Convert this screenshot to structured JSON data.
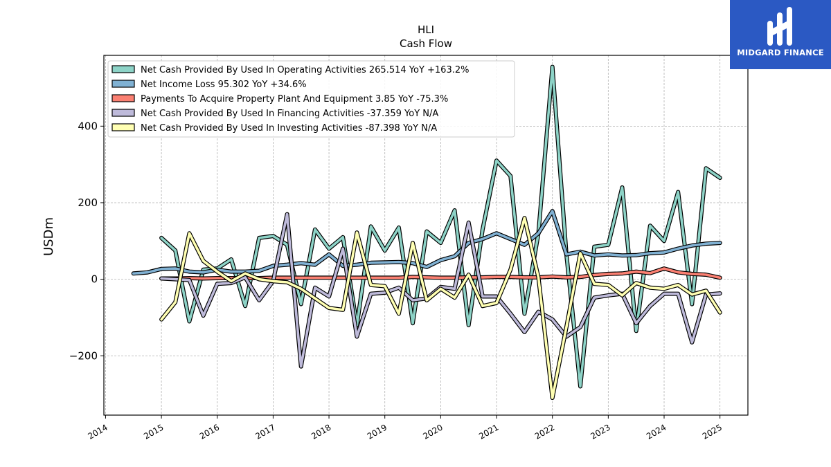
{
  "brand": {
    "name": "MIDGARD FINANCE",
    "background": "#2b59c3",
    "logo_icon": "midgard-mark-icon"
  },
  "chart_data": {
    "type": "line",
    "title": "HLI",
    "subtitle": "Cash Flow",
    "xlabel": "",
    "ylabel": "USDm",
    "xlim": [
      2013.97,
      2025.5
    ],
    "ylim": [
      -355,
      585
    ],
    "x_ticks": [
      "2014",
      "2015",
      "2016",
      "2017",
      "2018",
      "2019",
      "2020",
      "2021",
      "2022",
      "2023",
      "2024",
      "2025"
    ],
    "y_ticks": [
      -200,
      0,
      200,
      400
    ],
    "grid": true,
    "legend_position": "top-left",
    "series": [
      {
        "name": "Net Cash Provided By Used In Operating Activities  265.514 YoY +163.2%",
        "color": "#8dd3c7",
        "x": [
          2015.0,
          2015.25,
          2015.5,
          2015.75,
          2016.0,
          2016.25,
          2016.5,
          2016.75,
          2017.0,
          2017.25,
          2017.5,
          2017.75,
          2018.0,
          2018.25,
          2018.5,
          2018.75,
          2019.0,
          2019.25,
          2019.5,
          2019.75,
          2020.0,
          2020.25,
          2020.5,
          2020.75,
          2021.0,
          2021.25,
          2021.5,
          2021.75,
          2022.0,
          2022.25,
          2022.5,
          2022.75,
          2023.0,
          2023.25,
          2023.5,
          2023.75,
          2024.0,
          2024.25,
          2024.5,
          2024.75,
          2025.0
        ],
        "values": [
          108,
          75,
          -110,
          25,
          28,
          52,
          -70,
          108,
          113,
          90,
          -65,
          130,
          80,
          110,
          -120,
          138,
          75,
          135,
          -115,
          125,
          95,
          180,
          -120,
          130,
          310,
          270,
          -90,
          120,
          555,
          65,
          -280,
          85,
          90,
          240,
          -135,
          140,
          100,
          228,
          -65,
          290,
          265
        ]
      },
      {
        "name": "Net Income Loss  95.302 YoY +34.6%",
        "color": "#80b1d3",
        "x": [
          2014.5,
          2014.75,
          2015.0,
          2015.25,
          2015.5,
          2015.75,
          2016.0,
          2016.25,
          2016.5,
          2016.75,
          2017.0,
          2017.25,
          2017.5,
          2017.75,
          2018.0,
          2018.25,
          2018.5,
          2018.75,
          2019.0,
          2019.25,
          2019.5,
          2019.75,
          2020.0,
          2020.25,
          2020.5,
          2020.75,
          2021.0,
          2021.25,
          2021.5,
          2021.75,
          2022.0,
          2022.25,
          2022.5,
          2022.75,
          2023.0,
          2023.25,
          2023.5,
          2023.75,
          2024.0,
          2024.25,
          2024.5,
          2024.75,
          2025.0
        ],
        "values": [
          15,
          18,
          27,
          28,
          20,
          18,
          25,
          20,
          20,
          22,
          35,
          38,
          42,
          38,
          65,
          35,
          38,
          43,
          44,
          45,
          42,
          32,
          50,
          60,
          95,
          105,
          120,
          105,
          90,
          120,
          178,
          65,
          72,
          62,
          65,
          62,
          63,
          68,
          70,
          80,
          88,
          93,
          95
        ]
      },
      {
        "name": "Payments To Acquire Property Plant And Equipment  3.85 YoY -75.3%",
        "color": "#fb8072",
        "x": [
          2015.0,
          2015.25,
          2015.5,
          2015.75,
          2016.0,
          2016.25,
          2016.5,
          2016.75,
          2017.0,
          2017.25,
          2017.5,
          2017.75,
          2018.0,
          2018.25,
          2018.5,
          2018.75,
          2019.0,
          2019.25,
          2019.5,
          2019.75,
          2020.0,
          2020.25,
          2020.5,
          2020.75,
          2021.0,
          2021.25,
          2021.5,
          2021.75,
          2022.0,
          2022.25,
          2022.5,
          2022.75,
          2023.0,
          2023.25,
          2023.5,
          2023.75,
          2024.0,
          2024.25,
          2024.5,
          2024.75,
          2025.0
        ],
        "values": [
          2,
          2,
          3,
          2,
          3,
          3,
          3,
          3,
          4,
          4,
          4,
          4,
          4,
          4,
          4,
          4,
          4,
          4,
          6,
          5,
          4,
          4,
          5,
          5,
          6,
          6,
          5,
          5,
          7,
          5,
          6,
          11,
          14,
          15,
          20,
          16,
          28,
          18,
          14,
          12,
          4
        ]
      },
      {
        "name": "Net Cash Provided By Used In Financing Activities  -37.359 YoY N/A",
        "color": "#bebada",
        "x": [
          2015.0,
          2015.25,
          2015.5,
          2015.75,
          2016.0,
          2016.25,
          2016.5,
          2016.75,
          2017.0,
          2017.25,
          2017.5,
          2017.75,
          2018.0,
          2018.25,
          2018.5,
          2018.75,
          2019.0,
          2019.25,
          2019.5,
          2019.75,
          2020.0,
          2020.25,
          2020.5,
          2020.75,
          2021.0,
          2021.25,
          2021.5,
          2021.75,
          2022.0,
          2022.25,
          2022.5,
          2022.75,
          2023.0,
          2023.25,
          2023.5,
          2023.75,
          2024.0,
          2024.25,
          2024.5,
          2024.75,
          2025.0
        ],
        "values": [
          2,
          0,
          -2,
          -95,
          -12,
          -10,
          5,
          -55,
          -5,
          170,
          -228,
          -22,
          -45,
          80,
          -150,
          -38,
          -35,
          -22,
          -55,
          -50,
          -20,
          -25,
          148,
          -45,
          -45,
          -90,
          -138,
          -85,
          -105,
          -150,
          -125,
          -48,
          -42,
          -38,
          -115,
          -70,
          -38,
          -38,
          -165,
          -40,
          -37
        ]
      },
      {
        "name": "Net Cash Provided By Used In Investing Activities  -87.398 YoY N/A",
        "color": "#ffffb3",
        "x": [
          2015.0,
          2015.25,
          2015.5,
          2015.75,
          2016.0,
          2016.25,
          2016.5,
          2016.75,
          2017.0,
          2017.25,
          2017.5,
          2017.75,
          2018.0,
          2018.25,
          2018.5,
          2018.75,
          2019.0,
          2019.25,
          2019.5,
          2019.75,
          2020.0,
          2020.25,
          2020.5,
          2020.75,
          2021.0,
          2021.25,
          2021.5,
          2021.75,
          2022.0,
          2022.25,
          2022.5,
          2022.75,
          2023.0,
          2023.25,
          2023.5,
          2023.75,
          2024.0,
          2024.25,
          2024.5,
          2024.75,
          2025.0
        ],
        "values": [
          -105,
          -60,
          120,
          48,
          20,
          -5,
          15,
          0,
          -5,
          -8,
          -25,
          -50,
          -75,
          -80,
          122,
          -15,
          -18,
          -90,
          95,
          -55,
          -25,
          -48,
          12,
          -70,
          -62,
          25,
          160,
          5,
          -310,
          -125,
          68,
          -12,
          -15,
          -42,
          -10,
          -22,
          -25,
          -15,
          -40,
          -30,
          -87
        ]
      }
    ]
  }
}
